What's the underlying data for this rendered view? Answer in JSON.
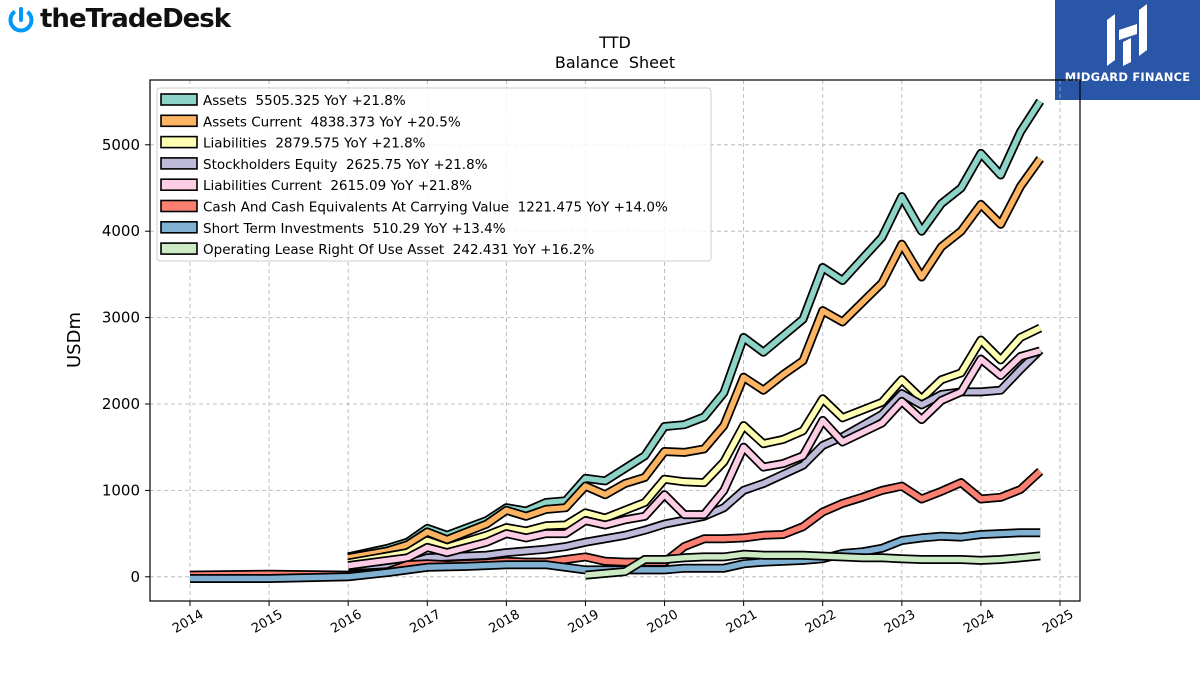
{
  "brand": {
    "name": "theTradeDesk",
    "logo_icon": "power-icon",
    "color": "#0099fa"
  },
  "watermark": {
    "name": "MIDGARD FINANCE",
    "logo_icon": "midgard-h-icon",
    "bg_color": "#2a56a8"
  },
  "chart_data": {
    "type": "line",
    "title": "TTD",
    "subtitle": "Balance  Sheet",
    "ylabel": "USDm",
    "xlabel": "",
    "xlim": [
      2014,
      2025
    ],
    "ylim": [
      -280,
      5750
    ],
    "x_ticks": [
      "2014",
      "2015",
      "2016",
      "2017",
      "2018",
      "2019",
      "2020",
      "2021",
      "2022",
      "2023",
      "2024",
      "2025"
    ],
    "y_ticks": [
      0,
      1000,
      2000,
      3000,
      4000,
      5000
    ],
    "grid": true,
    "legend_position": "top-left",
    "series": [
      {
        "name": "Assets",
        "legend": "Assets  5505.325 YoY +21.8%",
        "color": "#8dd3c7",
        "points": [
          [
            2016.0,
            230
          ],
          [
            2016.5,
            330
          ],
          [
            2016.75,
            400
          ],
          [
            2017.0,
            560
          ],
          [
            2017.25,
            480
          ],
          [
            2017.75,
            650
          ],
          [
            2018.0,
            800
          ],
          [
            2018.25,
            760
          ],
          [
            2018.5,
            860
          ],
          [
            2018.75,
            880
          ],
          [
            2019.0,
            1140
          ],
          [
            2019.25,
            1110
          ],
          [
            2019.75,
            1400
          ],
          [
            2020.0,
            1740
          ],
          [
            2020.25,
            1760
          ],
          [
            2020.5,
            1850
          ],
          [
            2020.75,
            2130
          ],
          [
            2021.0,
            2770
          ],
          [
            2021.25,
            2600
          ],
          [
            2021.75,
            2980
          ],
          [
            2022.0,
            3580
          ],
          [
            2022.25,
            3430
          ],
          [
            2022.75,
            3930
          ],
          [
            2023.0,
            4400
          ],
          [
            2023.25,
            4000
          ],
          [
            2023.5,
            4320
          ],
          [
            2023.75,
            4500
          ],
          [
            2024.0,
            4900
          ],
          [
            2024.25,
            4650
          ],
          [
            2024.5,
            5150
          ],
          [
            2024.75,
            5505
          ]
        ]
      },
      {
        "name": "Assets Current",
        "legend": "Assets Current  4838.373 YoY +20.5%",
        "color": "#fdb462",
        "points": [
          [
            2016.0,
            220
          ],
          [
            2016.5,
            300
          ],
          [
            2016.75,
            370
          ],
          [
            2017.0,
            520
          ],
          [
            2017.25,
            430
          ],
          [
            2017.75,
            610
          ],
          [
            2018.0,
            770
          ],
          [
            2018.25,
            700
          ],
          [
            2018.5,
            780
          ],
          [
            2018.75,
            800
          ],
          [
            2019.0,
            1050
          ],
          [
            2019.25,
            950
          ],
          [
            2019.5,
            1080
          ],
          [
            2019.75,
            1150
          ],
          [
            2020.0,
            1450
          ],
          [
            2020.25,
            1440
          ],
          [
            2020.5,
            1480
          ],
          [
            2020.75,
            1750
          ],
          [
            2021.0,
            2310
          ],
          [
            2021.25,
            2160
          ],
          [
            2021.5,
            2340
          ],
          [
            2021.75,
            2500
          ],
          [
            2022.0,
            3080
          ],
          [
            2022.25,
            2950
          ],
          [
            2022.75,
            3400
          ],
          [
            2023.0,
            3850
          ],
          [
            2023.25,
            3470
          ],
          [
            2023.5,
            3820
          ],
          [
            2023.75,
            4000
          ],
          [
            2024.0,
            4310
          ],
          [
            2024.25,
            4080
          ],
          [
            2024.5,
            4520
          ],
          [
            2024.75,
            4838
          ]
        ]
      },
      {
        "name": "Liabilities",
        "legend": "Liabilities  2879.575 YoY +21.8%",
        "color": "#ffffb3",
        "points": [
          [
            2016.0,
            160
          ],
          [
            2016.75,
            280
          ],
          [
            2017.0,
            420
          ],
          [
            2017.25,
            340
          ],
          [
            2017.75,
            480
          ],
          [
            2018.0,
            570
          ],
          [
            2018.25,
            530
          ],
          [
            2018.5,
            590
          ],
          [
            2018.75,
            600
          ],
          [
            2019.0,
            740
          ],
          [
            2019.25,
            680
          ],
          [
            2019.75,
            860
          ],
          [
            2020.0,
            1130
          ],
          [
            2020.25,
            1100
          ],
          [
            2020.5,
            1090
          ],
          [
            2020.75,
            1330
          ],
          [
            2021.0,
            1750
          ],
          [
            2021.25,
            1540
          ],
          [
            2021.5,
            1590
          ],
          [
            2021.75,
            1690
          ],
          [
            2022.0,
            2060
          ],
          [
            2022.25,
            1840
          ],
          [
            2022.75,
            2020
          ],
          [
            2023.0,
            2280
          ],
          [
            2023.25,
            2060
          ],
          [
            2023.5,
            2280
          ],
          [
            2023.75,
            2360
          ],
          [
            2024.0,
            2740
          ],
          [
            2024.25,
            2510
          ],
          [
            2024.5,
            2770
          ],
          [
            2024.75,
            2880
          ]
        ]
      },
      {
        "name": "Stockholders Equity",
        "legend": "Stockholders Equity  2625.75 YoY +21.8%",
        "color": "#bebada",
        "points": [
          [
            2016.0,
            120
          ],
          [
            2016.75,
            150
          ],
          [
            2017.0,
            220
          ],
          [
            2017.75,
            250
          ],
          [
            2018.0,
            280
          ],
          [
            2018.5,
            320
          ],
          [
            2018.75,
            350
          ],
          [
            2019.0,
            400
          ],
          [
            2019.5,
            480
          ],
          [
            2019.75,
            540
          ],
          [
            2020.0,
            610
          ],
          [
            2020.5,
            700
          ],
          [
            2020.75,
            800
          ],
          [
            2021.0,
            1000
          ],
          [
            2021.25,
            1080
          ],
          [
            2021.75,
            1290
          ],
          [
            2022.0,
            1520
          ],
          [
            2022.25,
            1620
          ],
          [
            2022.75,
            1880
          ],
          [
            2023.0,
            2120
          ],
          [
            2023.25,
            1990
          ],
          [
            2023.5,
            2110
          ],
          [
            2023.75,
            2140
          ],
          [
            2024.0,
            2140
          ],
          [
            2024.25,
            2160
          ],
          [
            2024.5,
            2400
          ],
          [
            2024.75,
            2626
          ]
        ]
      },
      {
        "name": "Liabilities Current",
        "legend": "Liabilities Current  2615.09 YoY +21.8%",
        "color": "#fccde5",
        "points": [
          [
            2016.0,
            130
          ],
          [
            2016.75,
            220
          ],
          [
            2017.0,
            340
          ],
          [
            2017.25,
            280
          ],
          [
            2017.75,
            400
          ],
          [
            2018.0,
            500
          ],
          [
            2018.25,
            450
          ],
          [
            2018.5,
            500
          ],
          [
            2018.75,
            500
          ],
          [
            2019.0,
            650
          ],
          [
            2019.25,
            600
          ],
          [
            2019.5,
            660
          ],
          [
            2019.75,
            700
          ],
          [
            2020.0,
            950
          ],
          [
            2020.25,
            720
          ],
          [
            2020.5,
            720
          ],
          [
            2020.75,
            1000
          ],
          [
            2021.0,
            1500
          ],
          [
            2021.25,
            1270
          ],
          [
            2021.5,
            1310
          ],
          [
            2021.75,
            1400
          ],
          [
            2022.0,
            1810
          ],
          [
            2022.25,
            1560
          ],
          [
            2022.75,
            1780
          ],
          [
            2023.0,
            2030
          ],
          [
            2023.25,
            1820
          ],
          [
            2023.5,
            2040
          ],
          [
            2023.75,
            2140
          ],
          [
            2024.0,
            2520
          ],
          [
            2024.25,
            2330
          ],
          [
            2024.5,
            2550
          ],
          [
            2024.75,
            2615
          ]
        ]
      },
      {
        "name": "Cash And Cash Equivalents At Carrying Value",
        "legend": "Cash And Cash Equivalents At Carrying Value  1221.475 YoY +14.0%",
        "color": "#fb8072",
        "points": [
          [
            2014.0,
            20
          ],
          [
            2015.0,
            30
          ],
          [
            2016.0,
            20
          ],
          [
            2016.25,
            40
          ],
          [
            2016.5,
            60
          ],
          [
            2016.75,
            140
          ],
          [
            2017.0,
            150
          ],
          [
            2017.25,
            140
          ],
          [
            2017.5,
            150
          ],
          [
            2017.75,
            160
          ],
          [
            2018.0,
            180
          ],
          [
            2018.25,
            170
          ],
          [
            2018.5,
            170
          ],
          [
            2018.75,
            200
          ],
          [
            2019.0,
            230
          ],
          [
            2019.25,
            180
          ],
          [
            2019.5,
            170
          ],
          [
            2019.75,
            170
          ],
          [
            2020.0,
            170
          ],
          [
            2020.25,
            350
          ],
          [
            2020.5,
            440
          ],
          [
            2020.75,
            440
          ],
          [
            2021.0,
            450
          ],
          [
            2021.25,
            480
          ],
          [
            2021.5,
            490
          ],
          [
            2021.75,
            580
          ],
          [
            2022.0,
            750
          ],
          [
            2022.25,
            850
          ],
          [
            2022.5,
            920
          ],
          [
            2022.75,
            1000
          ],
          [
            2023.0,
            1050
          ],
          [
            2023.25,
            900
          ],
          [
            2023.5,
            990
          ],
          [
            2023.75,
            1090
          ],
          [
            2024.0,
            900
          ],
          [
            2024.25,
            920
          ],
          [
            2024.5,
            1010
          ],
          [
            2024.75,
            1221
          ]
        ]
      },
      {
        "name": "Short Term Investments",
        "legend": "Short Term Investments  510.29 YoY +13.4%",
        "color": "#80b1d3",
        "points": [
          [
            2014.0,
            -20
          ],
          [
            2015.0,
            -20
          ],
          [
            2016.0,
            0
          ],
          [
            2016.5,
            50
          ],
          [
            2017.0,
            110
          ],
          [
            2017.5,
            120
          ],
          [
            2018.0,
            140
          ],
          [
            2018.5,
            140
          ],
          [
            2019.0,
            80
          ],
          [
            2019.5,
            80
          ],
          [
            2020.0,
            80
          ],
          [
            2020.25,
            100
          ],
          [
            2020.5,
            100
          ],
          [
            2020.75,
            100
          ],
          [
            2021.0,
            150
          ],
          [
            2021.25,
            170
          ],
          [
            2021.75,
            190
          ],
          [
            2022.0,
            210
          ],
          [
            2022.25,
            270
          ],
          [
            2022.5,
            290
          ],
          [
            2022.75,
            330
          ],
          [
            2023.0,
            420
          ],
          [
            2023.25,
            450
          ],
          [
            2023.5,
            470
          ],
          [
            2023.75,
            460
          ],
          [
            2024.0,
            490
          ],
          [
            2024.25,
            500
          ],
          [
            2024.5,
            510
          ],
          [
            2024.75,
            510
          ]
        ]
      },
      {
        "name": "Operating Lease Right Of Use Asset",
        "legend": "Operating Lease Right Of Use Asset  242.431 YoY +16.2%",
        "color": "#ccebc5",
        "points": [
          [
            2019.0,
            20
          ],
          [
            2019.25,
            40
          ],
          [
            2019.5,
            60
          ],
          [
            2019.75,
            200
          ],
          [
            2020.0,
            200
          ],
          [
            2020.25,
            220
          ],
          [
            2020.5,
            230
          ],
          [
            2020.75,
            230
          ],
          [
            2021.0,
            260
          ],
          [
            2021.25,
            250
          ],
          [
            2021.5,
            250
          ],
          [
            2021.75,
            250
          ],
          [
            2022.0,
            240
          ],
          [
            2022.25,
            230
          ],
          [
            2022.5,
            220
          ],
          [
            2022.75,
            220
          ],
          [
            2023.0,
            210
          ],
          [
            2023.25,
            200
          ],
          [
            2023.5,
            200
          ],
          [
            2023.75,
            200
          ],
          [
            2024.0,
            190
          ],
          [
            2024.25,
            200
          ],
          [
            2024.5,
            220
          ],
          [
            2024.75,
            242
          ]
        ]
      }
    ]
  }
}
